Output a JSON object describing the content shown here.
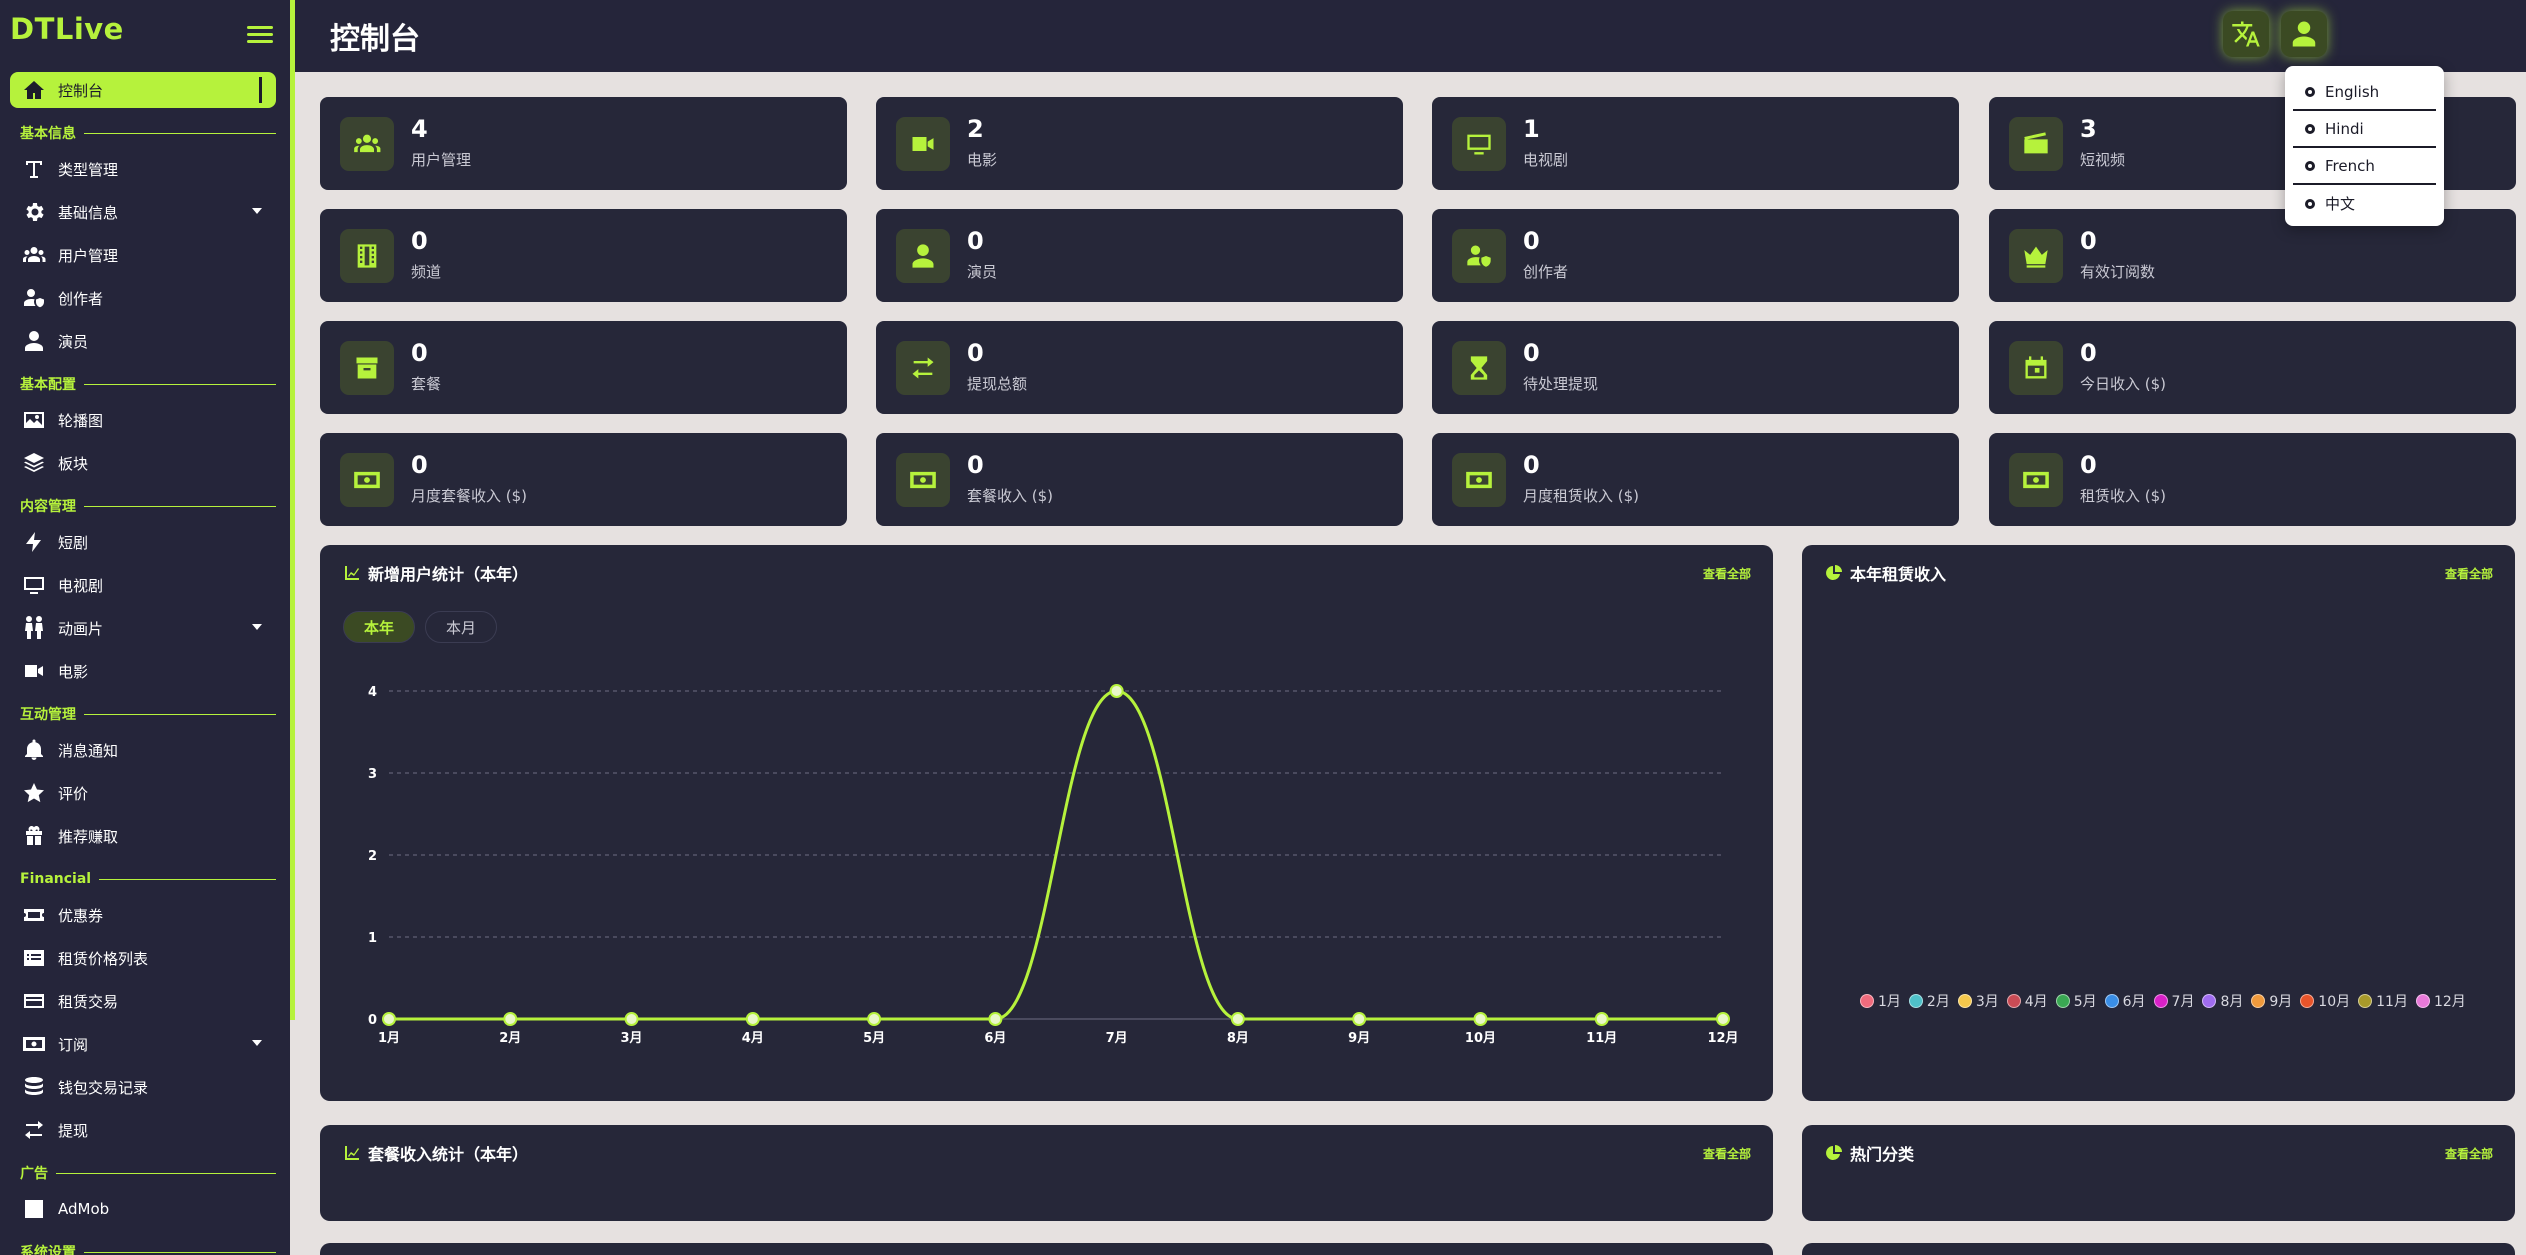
{
  "app": {
    "logo": "DTLive",
    "page_title": "控制台"
  },
  "sidebar": {
    "items": [
      {
        "key": "dashboard",
        "label": "控制台",
        "icon": "home-icon",
        "active": true
      },
      {
        "key": "section-basic",
        "section": "基本信息"
      },
      {
        "key": "types",
        "label": "类型管理",
        "icon": "type-icon"
      },
      {
        "key": "basic-info",
        "label": "基础信息",
        "icon": "gear-icon",
        "caret": true
      },
      {
        "key": "users",
        "label": "用户管理",
        "icon": "users-icon"
      },
      {
        "key": "creators",
        "label": "创作者",
        "icon": "user-shield-icon"
      },
      {
        "key": "actors",
        "label": "演员",
        "icon": "user-icon"
      },
      {
        "key": "section-config",
        "section": "基本配置"
      },
      {
        "key": "banners",
        "label": "轮播图",
        "icon": "image-icon"
      },
      {
        "key": "blocks",
        "label": "板块",
        "icon": "layers-icon"
      },
      {
        "key": "section-content",
        "section": "内容管理"
      },
      {
        "key": "shorts",
        "label": "短剧",
        "icon": "bolt-icon"
      },
      {
        "key": "tv",
        "label": "电视剧",
        "icon": "tv-icon"
      },
      {
        "key": "anime",
        "label": "动画片",
        "icon": "child-icon",
        "caret": true
      },
      {
        "key": "movies",
        "label": "电影",
        "icon": "video-icon"
      },
      {
        "key": "section-interact",
        "section": "互动管理"
      },
      {
        "key": "notifications",
        "label": "消息通知",
        "icon": "bell-icon"
      },
      {
        "key": "reviews",
        "label": "评价",
        "icon": "star-icon"
      },
      {
        "key": "referral",
        "label": "推荐赚取",
        "icon": "gift-icon"
      },
      {
        "key": "section-financial",
        "section": "Financial"
      },
      {
        "key": "coupons",
        "label": "优惠券",
        "icon": "ticket-icon"
      },
      {
        "key": "rent-prices",
        "label": "租赁价格列表",
        "icon": "price-list-icon"
      },
      {
        "key": "rent-trans",
        "label": "租赁交易",
        "icon": "receipt-icon"
      },
      {
        "key": "subscriptions",
        "label": "订阅",
        "icon": "money-icon",
        "caret": true
      },
      {
        "key": "wallet",
        "label": "钱包交易记录",
        "icon": "coins-icon"
      },
      {
        "key": "withdraw",
        "label": "提现",
        "icon": "exchange-icon"
      },
      {
        "key": "section-ads",
        "section": "广告"
      },
      {
        "key": "admob",
        "label": "AdMob",
        "icon": "admob-icon"
      },
      {
        "key": "section-system",
        "section": "系统设置"
      }
    ]
  },
  "header": {
    "translate_icon": "translate-icon",
    "profile_icon": "user-icon"
  },
  "language_menu": {
    "options": [
      "English",
      "Hindi",
      "French",
      "中文"
    ]
  },
  "stats": [
    {
      "value": "4",
      "label": "用户管理",
      "icon": "users-icon"
    },
    {
      "value": "2",
      "label": "电影",
      "icon": "video-icon"
    },
    {
      "value": "1",
      "label": "电视剧",
      "icon": "tv-icon"
    },
    {
      "value": "3",
      "label": "短视频",
      "icon": "clapper-icon"
    },
    {
      "value": "0",
      "label": "频道",
      "icon": "film-icon"
    },
    {
      "value": "0",
      "label": "演员",
      "icon": "user-icon"
    },
    {
      "value": "0",
      "label": "创作者",
      "icon": "user-shield-icon"
    },
    {
      "value": "0",
      "label": "有效订阅数",
      "icon": "crown-icon"
    },
    {
      "value": "0",
      "label": "套餐",
      "icon": "box-icon"
    },
    {
      "value": "0",
      "label": "提现总额",
      "icon": "exchange-icon"
    },
    {
      "value": "0",
      "label": "待处理提现",
      "icon": "hourglass-icon"
    },
    {
      "value": "0",
      "label": "今日收入 ($)",
      "icon": "calendar-icon"
    },
    {
      "value": "0",
      "label": "月度套餐收入 ($)",
      "icon": "money-icon"
    },
    {
      "value": "0",
      "label": "套餐收入 ($)",
      "icon": "money-icon"
    },
    {
      "value": "0",
      "label": "月度租赁收入 ($)",
      "icon": "money-icon"
    },
    {
      "value": "0",
      "label": "租赁收入 ($)",
      "icon": "money-icon"
    }
  ],
  "panels": {
    "new_users": {
      "title": "新增用户统计（本年）",
      "view_all": "查看全部",
      "tabs": [
        "本年",
        "本月"
      ]
    },
    "rent_revenue": {
      "title": "本年租赁收入",
      "view_all": "查看全部"
    },
    "package_revenue": {
      "title": "套餐收入统计（本年）",
      "view_all": "查看全部"
    },
    "hot_categories": {
      "title": "热门分类",
      "view_all": "查看全部"
    }
  },
  "chart_data": [
    {
      "type": "line",
      "title": "新增用户统计（本年）",
      "categories": [
        "1月",
        "2月",
        "3月",
        "4月",
        "5月",
        "6月",
        "7月",
        "8月",
        "9月",
        "10月",
        "11月",
        "12月"
      ],
      "values": [
        0,
        0,
        0,
        0,
        0,
        0,
        4,
        0,
        0,
        0,
        0,
        0
      ],
      "ylim": [
        0,
        4
      ],
      "yticks": [
        0,
        1,
        2,
        3,
        4
      ],
      "color": "#b6f23c",
      "grid": true
    },
    {
      "type": "pie",
      "title": "本年租赁收入",
      "categories": [
        "1月",
        "2月",
        "3月",
        "4月",
        "5月",
        "6月",
        "7月",
        "8月",
        "9月",
        "10月",
        "11月",
        "12月"
      ],
      "values": [
        0,
        0,
        0,
        0,
        0,
        0,
        0,
        0,
        0,
        0,
        0,
        0
      ],
      "colors": [
        "#f06b7d",
        "#4fc1c9",
        "#f5c84c",
        "#c94b55",
        "#3aa853",
        "#3a8ee6",
        "#d921c8",
        "#a06cf0",
        "#f09a3c",
        "#e8542a",
        "#a89a2a",
        "#e87ad9"
      ],
      "legend": "bottom"
    }
  ]
}
